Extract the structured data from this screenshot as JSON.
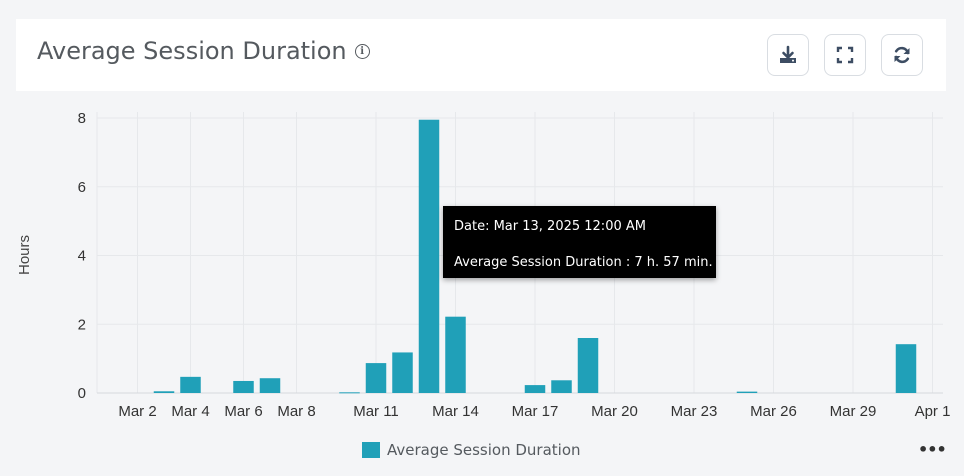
{
  "header": {
    "title": "Average Session Duration",
    "info_icon": "info-circle-icon",
    "actions": [
      {
        "name": "download-button",
        "icon": "download-icon"
      },
      {
        "name": "fullscreen-button",
        "icon": "fullscreen-icon"
      },
      {
        "name": "refresh-button",
        "icon": "refresh-icon"
      }
    ]
  },
  "tooltip": {
    "date_line": "Date: Mar 13, 2025 12:00 AM",
    "value_line": "Average Session Duration : 7 h. 57 min."
  },
  "legend": {
    "label": "Average Session Duration",
    "color": "#20a0b8"
  },
  "more_label": "•••",
  "chart_data": {
    "type": "bar",
    "title": "Average Session Duration",
    "xlabel": "",
    "ylabel": "Hours",
    "ylim": [
      0,
      8
    ],
    "yticks": [
      "0",
      "2",
      "4",
      "6",
      "8"
    ],
    "xtick_labels": [
      "Mar 2",
      "Mar 4",
      "Mar 6",
      "Mar 8",
      "Mar 11",
      "Mar 14",
      "Mar 17",
      "Mar 20",
      "Mar 23",
      "Mar 26",
      "Mar 29",
      "Apr 1"
    ],
    "x_start_date": "Mar 1",
    "day_labels": [
      "Mar 1",
      "Mar 2",
      "Mar 3",
      "Mar 4",
      "Mar 5",
      "Mar 6",
      "Mar 7",
      "Mar 8",
      "Mar 9",
      "Mar 10",
      "Mar 11",
      "Mar 12",
      "Mar 13",
      "Mar 14",
      "Mar 15",
      "Mar 16",
      "Mar 17",
      "Mar 18",
      "Mar 19",
      "Mar 20",
      "Mar 21",
      "Mar 22",
      "Mar 23",
      "Mar 24",
      "Mar 25",
      "Mar 26",
      "Mar 27",
      "Mar 28",
      "Mar 29",
      "Mar 30",
      "Mar 31",
      "Apr 1"
    ],
    "values": [
      0,
      0,
      0.05,
      0.47,
      0,
      0.35,
      0.43,
      0,
      0,
      0.02,
      0.87,
      1.18,
      7.95,
      2.22,
      0,
      0,
      0.23,
      0.37,
      1.6,
      0,
      0,
      0,
      0,
      0,
      0.04,
      0,
      0,
      0,
      0,
      0,
      1.42,
      0
    ],
    "series": [
      {
        "name": "Average Session Duration",
        "color": "#20a0b8"
      }
    ],
    "grid": true,
    "legend_position": "bottom-center"
  }
}
